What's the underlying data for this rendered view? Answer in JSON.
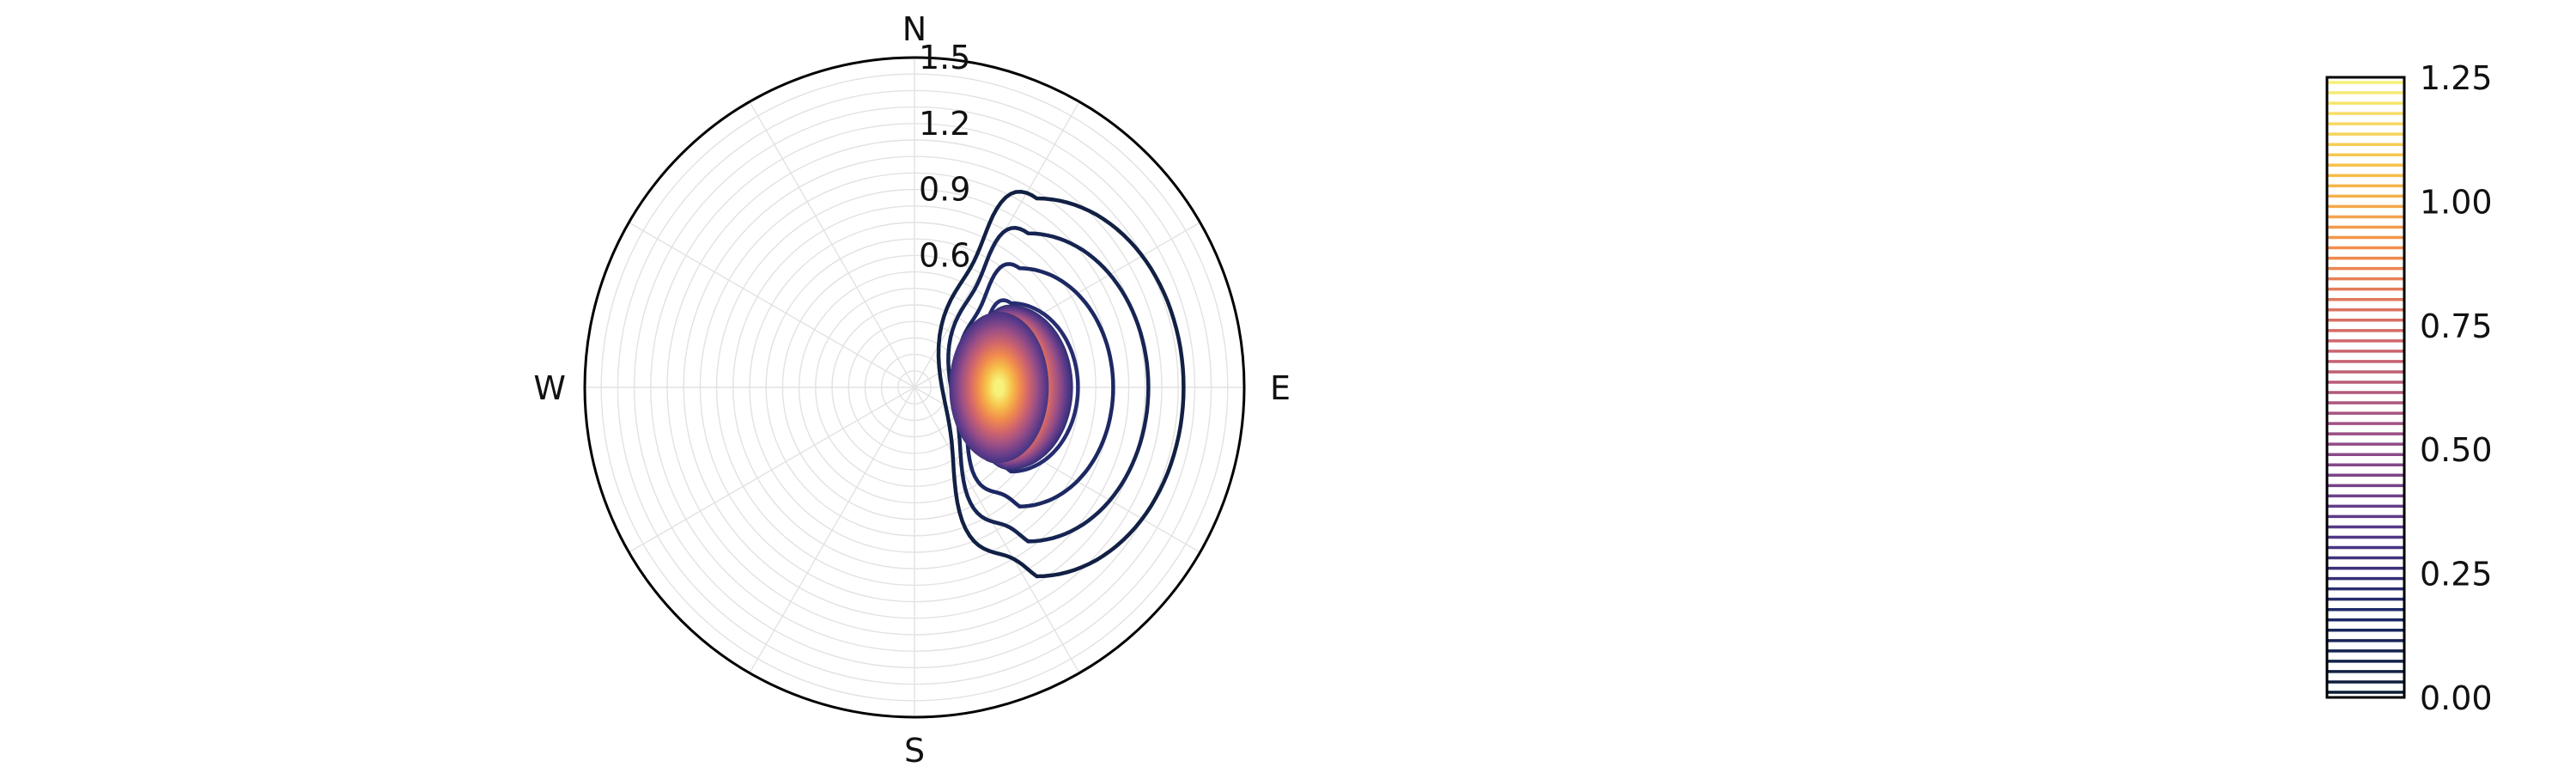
{
  "chart_data": {
    "type": "polar-contour",
    "title": "",
    "compass_labels": {
      "north": "N",
      "east": "E",
      "south": "S",
      "west": "W"
    },
    "radial_ticks": [
      0.6,
      0.9,
      1.2,
      1.5
    ],
    "radial_tick_labels": [
      "0.6",
      "0.9",
      "1.2",
      "1.5"
    ],
    "rlim": [
      0,
      1.5
    ],
    "grid": true,
    "colormap": [
      "#0b1c33",
      "#1f2a6b",
      "#5b3a8a",
      "#9b4f86",
      "#d0656c",
      "#f08b4d",
      "#f7c14a",
      "#f6f27a"
    ],
    "peak": {
      "direction_deg_from_north": 90,
      "radius": 0.4,
      "value": 1.25
    },
    "contour_levels": [
      0.05,
      0.1,
      0.15,
      0.2,
      0.25,
      0.3,
      0.35,
      0.4,
      0.45,
      0.5,
      0.55,
      0.6,
      0.65,
      0.7,
      0.75,
      0.8,
      0.85,
      0.9,
      0.95,
      1.0,
      1.05,
      1.1,
      1.15,
      1.2
    ],
    "colorbar": {
      "range": [
        0.0,
        1.25
      ],
      "ticks": [
        0.0,
        0.25,
        0.5,
        0.75,
        1.0,
        1.25
      ],
      "tick_labels": [
        "0.00",
        "0.25",
        "0.50",
        "0.75",
        "1.00",
        "1.25"
      ],
      "levels": 60,
      "placement": "right"
    }
  }
}
